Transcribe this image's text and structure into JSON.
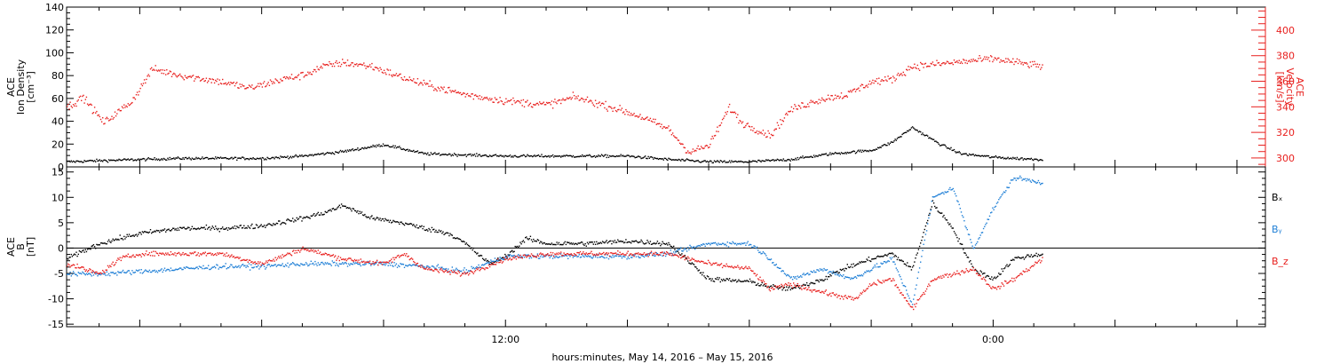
{
  "xlabel": "hours:minutes, May 14, 2016 – May 15, 2016",
  "x_ticks": [
    {
      "hour": 12,
      "label": "12:00"
    },
    {
      "hour": 24,
      "label": "0:00"
    }
  ],
  "colors": {
    "black": "#000000",
    "red": "#e8201e",
    "blue": "#1f7fd6"
  },
  "chart_data": [
    {
      "type": "scatter",
      "panel": "top",
      "xunit": "hours since 00:00 May 14, 2016",
      "xlim": [
        1.2,
        30.7
      ],
      "ylabel_left": [
        "ACE",
        "Ion Density",
        "[cm⁻³]"
      ],
      "ylabel_right": [
        "ACE",
        "Velocity",
        "[km/s]"
      ],
      "left_axis": {
        "ylim": [
          0,
          140
        ],
        "ticks": [
          0,
          20,
          40,
          60,
          80,
          100,
          120,
          140
        ]
      },
      "right_axis": {
        "ylim": [
          293,
          418
        ],
        "ticks": [
          300,
          320,
          340,
          360,
          380,
          400
        ]
      },
      "series": [
        {
          "color": "black",
          "axis": "left",
          "x": [
            1.2,
            2,
            3,
            4,
            5,
            6,
            7,
            8,
            9,
            10,
            11,
            12,
            13,
            14,
            15,
            16,
            17,
            18,
            19,
            20,
            21,
            21.5,
            22,
            22.7,
            23.2,
            24,
            24.5,
            25.2
          ],
          "y": [
            5,
            6,
            7,
            8,
            8,
            8,
            10,
            14,
            20,
            12,
            11,
            10,
            10,
            10,
            10,
            7,
            5,
            5,
            7,
            12,
            15,
            22,
            35,
            20,
            12,
            9,
            8,
            7
          ]
        },
        {
          "color": "red",
          "axis": "right",
          "x": [
            1.2,
            1.6,
            2.1,
            2.4,
            2.8,
            3.3,
            4,
            5,
            5.7,
            6.5,
            7,
            7.5,
            8,
            8.7,
            9.3,
            10,
            11,
            12,
            13,
            13.7,
            14.6,
            15.3,
            16,
            16.5,
            17,
            17.5,
            17.8,
            18.5,
            19,
            19.6,
            20,
            20.4,
            21,
            21.5,
            22,
            23,
            24,
            24.6,
            25.2
          ],
          "y": [
            340,
            348,
            328,
            335,
            345,
            370,
            365,
            360,
            355,
            362,
            365,
            372,
            375,
            372,
            365,
            358,
            350,
            345,
            342,
            348,
            340,
            333,
            323,
            305,
            310,
            340,
            328,
            318,
            338,
            345,
            348,
            350,
            360,
            362,
            372,
            375,
            378,
            375,
            372
          ]
        }
      ]
    },
    {
      "type": "scatter",
      "panel": "bottom",
      "xunit": "hours since 00:00 May 14, 2016",
      "xlim": [
        1.2,
        30.7
      ],
      "ylabel_left": [
        "ACE",
        "B",
        "[nT]"
      ],
      "left_axis": {
        "ylim": [
          -15.5,
          16
        ],
        "ticks": [
          -15,
          -10,
          -5,
          0,
          5,
          10,
          15
        ]
      },
      "zero_line": true,
      "series": [
        {
          "name": "Bₓ",
          "color": "black",
          "x": [
            1.2,
            2,
            3,
            4,
            5,
            6,
            7,
            7.5,
            8,
            8.7,
            9.5,
            10,
            10.6,
            11,
            11.6,
            12,
            12.5,
            13,
            14,
            15,
            16,
            17,
            18,
            18.5,
            19,
            19.8,
            20.3,
            21,
            21.5,
            22,
            22.5,
            23,
            23.5,
            24,
            24.5,
            25.2
          ],
          "y": [
            -2,
            1,
            3,
            4,
            4,
            4.5,
            6,
            7,
            8.5,
            6,
            5,
            4,
            3,
            1,
            -3,
            -1.5,
            2,
            1,
            1,
            1.5,
            1,
            -6,
            -6.5,
            -7.5,
            -8,
            -6,
            -4,
            -2,
            -1,
            -4,
            9,
            4,
            -4,
            -6,
            -2,
            -1
          ]
        },
        {
          "name": "Bᵧ",
          "color": "blue",
          "x": [
            1.2,
            2,
            3,
            4,
            5,
            6,
            7,
            8,
            9,
            10,
            11,
            12,
            13,
            14,
            15,
            16,
            17,
            18,
            18.5,
            19,
            19.8,
            20.5,
            21,
            21.5,
            22,
            22.5,
            23,
            23.5,
            24,
            24.5,
            25.2
          ],
          "y": [
            -5,
            -5,
            -4.5,
            -4,
            -3.5,
            -3.5,
            -3,
            -3,
            -3,
            -3.5,
            -4.5,
            -1.5,
            -1.5,
            -1.5,
            -1.5,
            -1,
            1,
            1,
            -2,
            -6,
            -4,
            -6,
            -4,
            -2,
            -11,
            10,
            12,
            0,
            8,
            14,
            13
          ]
        },
        {
          "name": "B_z",
          "color": "red",
          "x": [
            1.2,
            2,
            2.5,
            3,
            4,
            5,
            6,
            7,
            8,
            9,
            9.5,
            10,
            11,
            12,
            13,
            14,
            15,
            16,
            17,
            18,
            18.5,
            19,
            20,
            20.6,
            21,
            21.5,
            22,
            22.5,
            23,
            23.5,
            24,
            24.5,
            25.2
          ],
          "y": [
            -3,
            -5,
            -2,
            -1,
            -1,
            -1,
            -3,
            0,
            -2,
            -3,
            -1,
            -4,
            -5,
            -2,
            -1,
            -1,
            -1,
            -1,
            -3,
            -4,
            -8,
            -7,
            -9,
            -10,
            -7,
            -6,
            -12,
            -6,
            -5,
            -4,
            -8,
            -6,
            -2
          ]
        }
      ]
    }
  ]
}
